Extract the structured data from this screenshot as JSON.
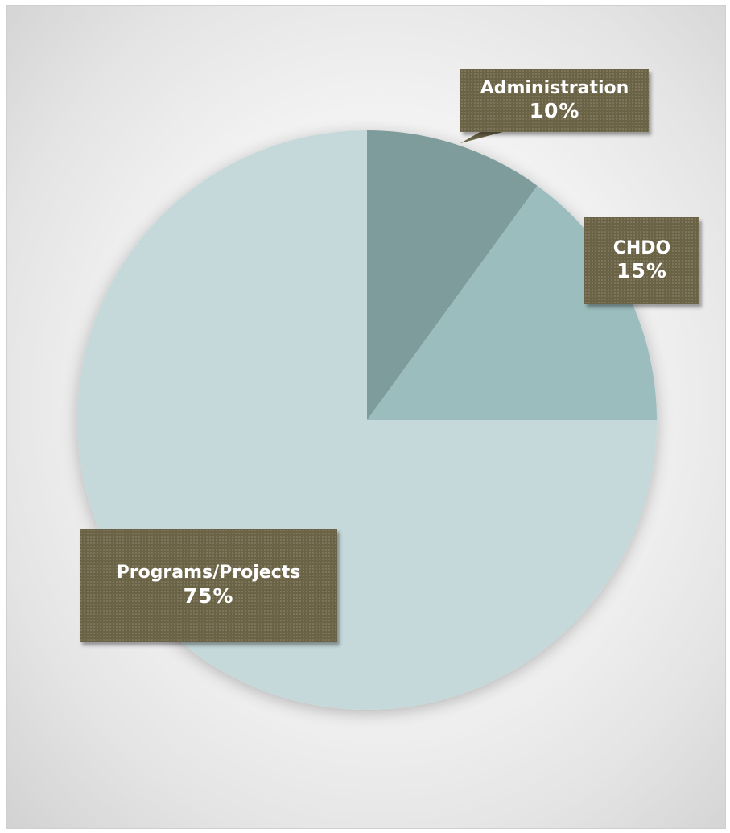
{
  "chart_data": {
    "type": "pie",
    "slices": [
      {
        "label": "Administration",
        "value": 10,
        "percent_label": "10%",
        "color": "#7f9c9c"
      },
      {
        "label": "CHDO",
        "value": 15,
        "percent_label": "15%",
        "color": "#9cbdbd"
      },
      {
        "label": "Programs/Projects",
        "value": 75,
        "percent_label": "75%",
        "color": "#c5d9da"
      }
    ],
    "start": "12 o'clock",
    "direction": "clockwise",
    "legend": "none",
    "data_labels": "callout boxes",
    "label_box_color": "#6b6346"
  }
}
